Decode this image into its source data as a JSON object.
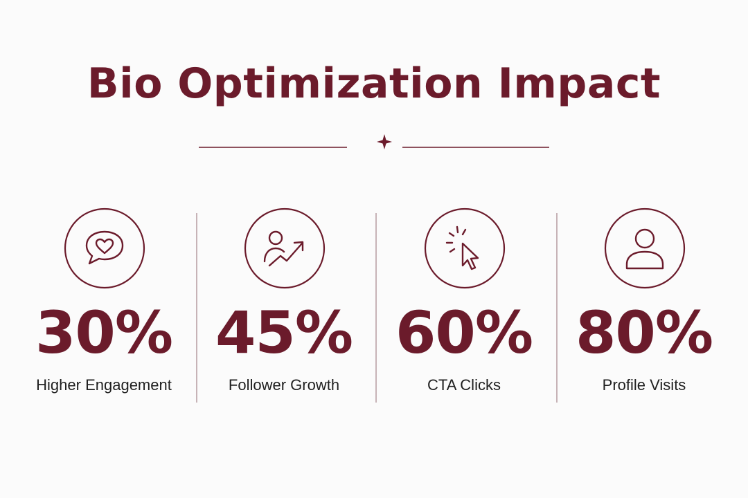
{
  "title": "Bio Optimization Impact",
  "accent_color": "#6b1b2b",
  "divider_icon": "crescent-star-icon",
  "stats": [
    {
      "value": "30%",
      "label": "Higher Engagement",
      "icon": "heart-chat-icon"
    },
    {
      "value": "45%",
      "label": "Follower Growth",
      "icon": "user-growth-icon"
    },
    {
      "value": "60%",
      "label": "CTA Clicks",
      "icon": "cursor-click-icon"
    },
    {
      "value": "80%",
      "label": "Profile Visits",
      "icon": "user-icon"
    }
  ]
}
